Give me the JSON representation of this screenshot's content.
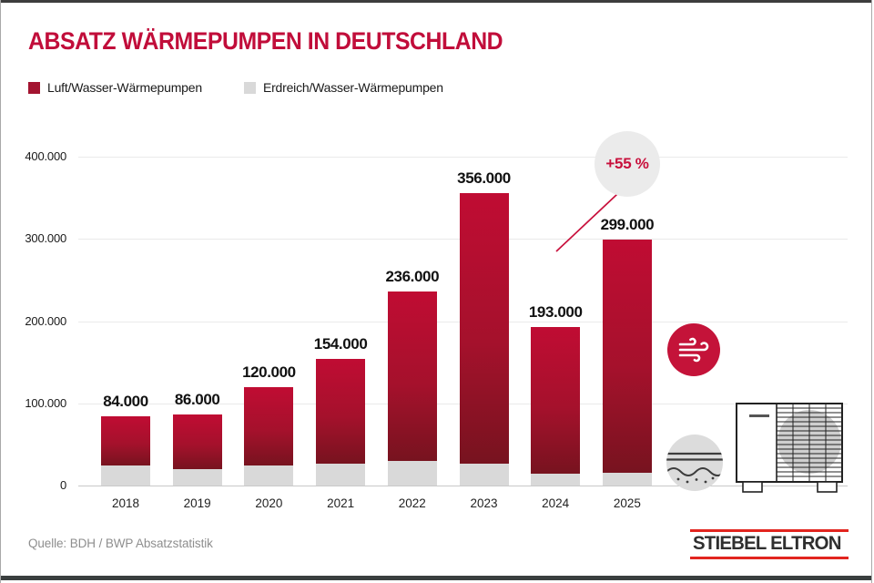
{
  "title": "ABSATZ WÄRMEPUMPEN IN DEUTSCHLAND",
  "legend": {
    "items": [
      {
        "label": "Luft/Wasser-Wärmepumpen",
        "color": "#a31430"
      },
      {
        "label": "Erdreich/Wasser-Wärmepumpen",
        "color": "#d9d9d9"
      }
    ]
  },
  "growth": {
    "label": "+55 %"
  },
  "chart_data": {
    "type": "bar",
    "stacked": true,
    "title": "ABSATZ WÄRMEPUMPEN IN DEUTSCHLAND",
    "categories": [
      "2018",
      "2019",
      "2020",
      "2021",
      "2022",
      "2023",
      "2024",
      "2025"
    ],
    "series": [
      {
        "name": "Luft/Wasser-Wärmepumpen",
        "color": "#c00c33",
        "values": [
          60000,
          66000,
          96000,
          127000,
          206000,
          329000,
          179000,
          284000
        ]
      },
      {
        "name": "Erdreich/Wasser-Wärmepumpen",
        "color": "#d9d9d9",
        "values": [
          24000,
          20000,
          24000,
          27000,
          30000,
          27000,
          14000,
          15000
        ]
      }
    ],
    "totals": [
      84000,
      86000,
      120000,
      154000,
      236000,
      356000,
      193000,
      299000
    ],
    "total_labels": [
      "84.000",
      "86.000",
      "120.000",
      "154.000",
      "236.000",
      "356.000",
      "193.000",
      "299.000"
    ],
    "ylim": [
      0,
      400000
    ],
    "yticks": [
      0,
      100000,
      200000,
      300000,
      400000
    ],
    "ytick_labels": [
      "0",
      "100.000",
      "200.000",
      "300.000",
      "400.000"
    ],
    "grid": "horizontal",
    "legend_position": "top-left",
    "annotation": {
      "text": "+55 %"
    }
  },
  "icons": {
    "wind": "wind-icon",
    "ground": "ground-icon",
    "heat_pump": "heat-pump-icon",
    "arrow": "growth-arrow-icon"
  },
  "footer": {
    "source": "Quelle: BDH / BWP Absatzstatistik",
    "logo_text": "STIEBEL ELTRON"
  },
  "colors": {
    "title_red": "#c10d3a",
    "bar_red_top": "#c00c33",
    "bar_red_bottom": "#77131f",
    "bar_gray": "#d9d9d9",
    "bubble_gray": "#ebebeb",
    "arrow_red": "#c8103c",
    "wind_circle_red": "#c41339",
    "ground_circle_gray": "#dcdcdc",
    "logo_red": "#e2251f",
    "frame_dark": "#3d3d3d"
  }
}
